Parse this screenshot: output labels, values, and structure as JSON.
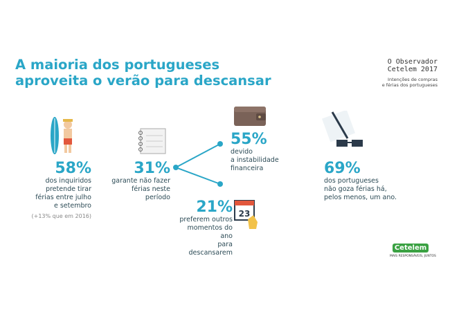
{
  "title_line1": "A maioria dos portugueses",
  "title_line2": "aproveita o verão para descansar",
  "brand": {
    "line1": "O Observador",
    "line2": "Cetelem 2017",
    "sub1": "Intenções de compras",
    "sub2": "e férias dos portugueses"
  },
  "stat1": {
    "value": "58%",
    "lines": [
      "dos inquiridos",
      "pretende tirar",
      "férias entre julho",
      "e setembro"
    ],
    "note": "(+13% que em 2016)"
  },
  "stat2": {
    "value": "31%",
    "lines": [
      "garante não fazer",
      "férias neste",
      "período"
    ]
  },
  "stat3": {
    "value": "55%",
    "lines": [
      "devido",
      "a instabilidade",
      "financeira"
    ]
  },
  "stat4": {
    "value": "21%",
    "lines": [
      "preferem outros",
      "momentos do ano",
      "para descansarem"
    ]
  },
  "stat5": {
    "value": "69%",
    "lines": [
      "dos portugueses",
      "não goza férias há,",
      "pelos menos, um ano."
    ]
  },
  "calendar_day": "23",
  "footer": {
    "logo": "Cetelem",
    "tagline": "MAIS RESPONSÁVEIS, JUNTOS"
  }
}
